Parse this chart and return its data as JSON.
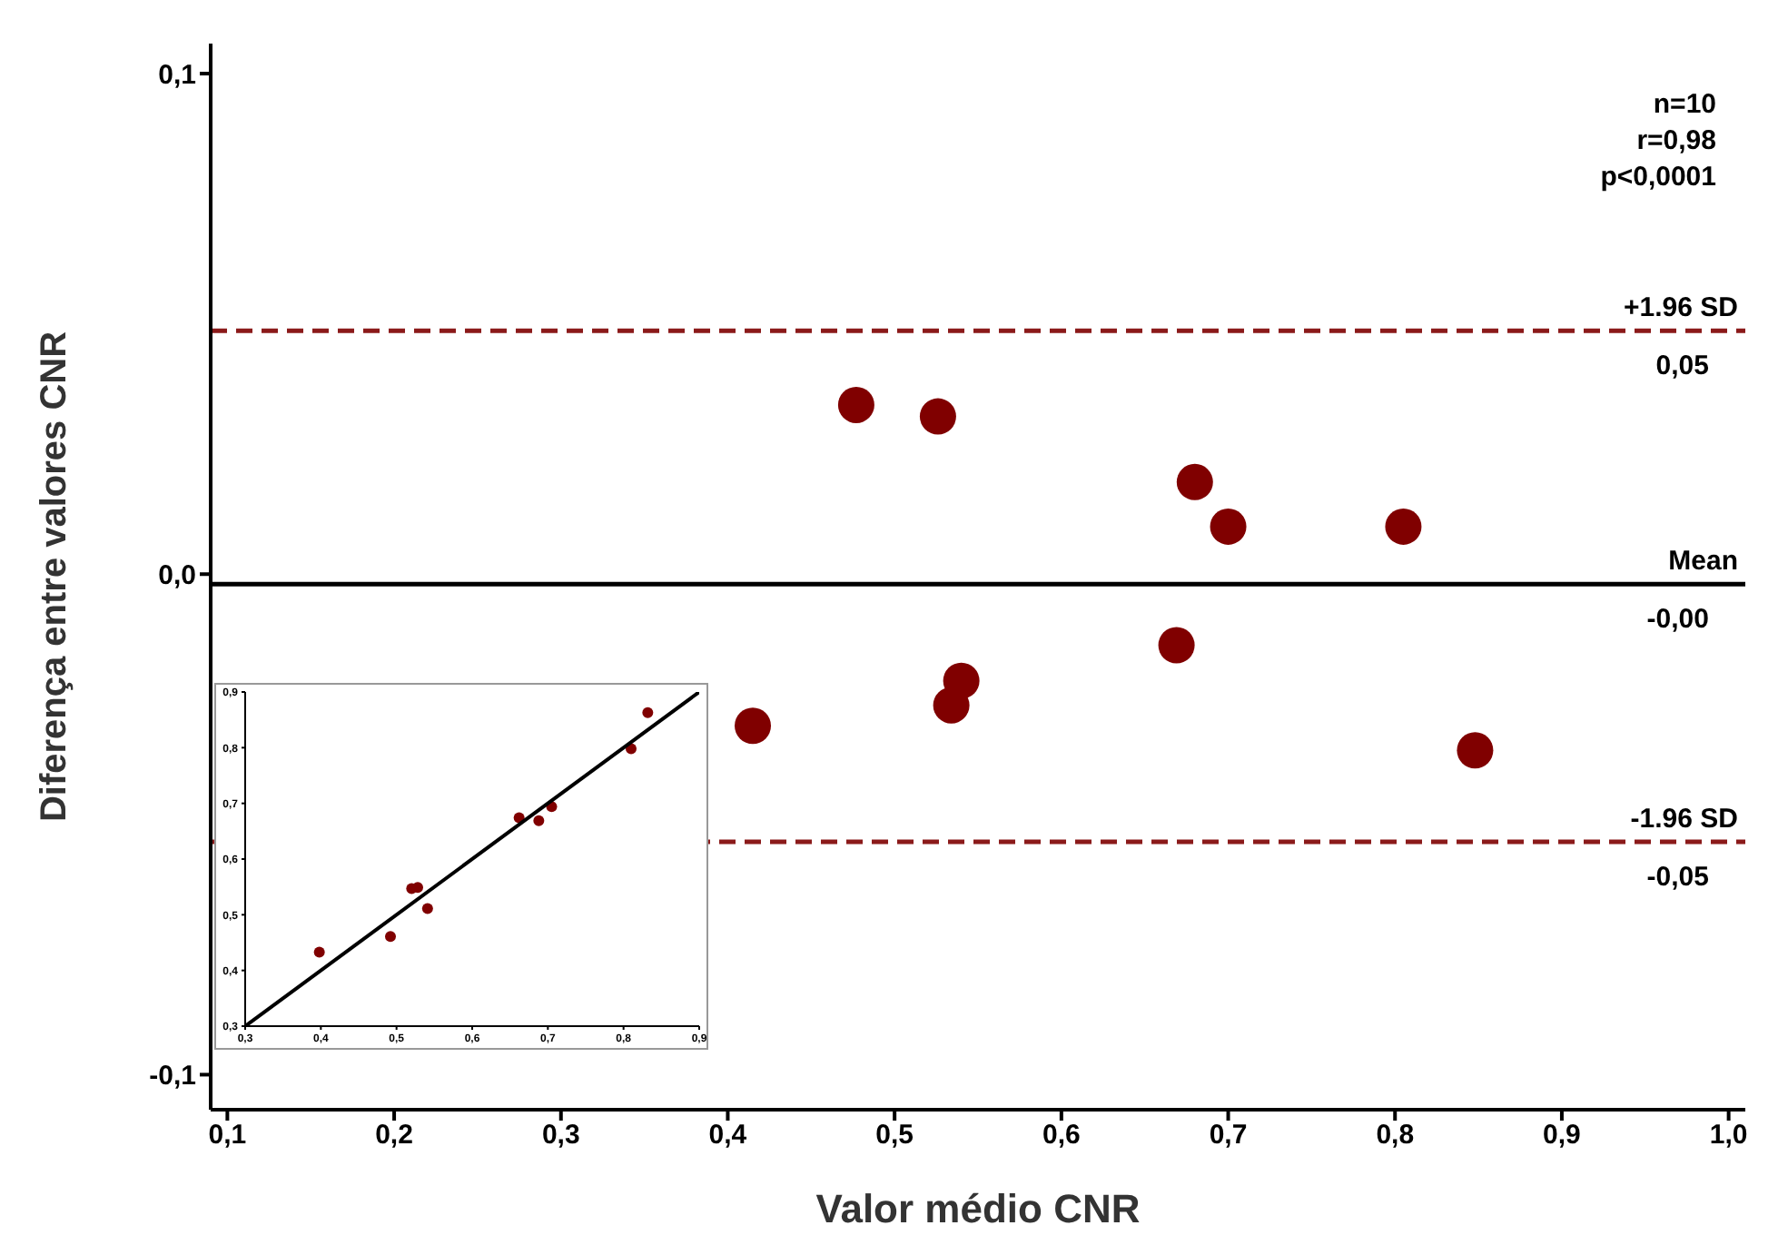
{
  "chart_data": [
    {
      "type": "scatter",
      "xlabel": "Valor médio CNR",
      "ylabel": "Diferença entre valores CNR",
      "series": [
        {
          "color": "#800000",
          "x": [
            0.477,
            0.526,
            0.68,
            0.7,
            0.805,
            0.669,
            0.54,
            0.534,
            0.415,
            0.848
          ],
          "values": [
            0.0338,
            0.0315,
            0.0184,
            0.0095,
            0.0095,
            -0.0142,
            -0.0213,
            -0.0262,
            -0.0303,
            -0.0352
          ]
        }
      ],
      "xlim": [
        0.09,
        1.01
      ],
      "xticks": [
        {
          "value": 0.1,
          "label": "0,1"
        },
        {
          "value": 0.2,
          "label": "0,2"
        },
        {
          "value": 0.3,
          "label": "0,3"
        },
        {
          "value": 0.4,
          "label": "0,4"
        },
        {
          "value": 0.5,
          "label": "0,5"
        },
        {
          "value": 0.6,
          "label": "0,6"
        },
        {
          "value": 0.7,
          "label": "0,7"
        },
        {
          "value": 0.8,
          "label": "0,8"
        },
        {
          "value": 0.9,
          "label": "0,9"
        },
        {
          "value": 1.0,
          "label": "1,0"
        }
      ],
      "ylim": [
        -0.107,
        0.106
      ],
      "yticks": [
        {
          "value": -0.1,
          "label": "-0,1"
        },
        {
          "value": 0,
          "label": "0,0"
        },
        {
          "value": 0.1,
          "label": "0,1"
        }
      ],
      "ref_lines": [
        {
          "axis": "y",
          "value": 0.0486,
          "label": "+1.96 SD",
          "color": "#8b1a1a",
          "line_style": "dashed"
        },
        {
          "axis": "y",
          "value": -0.002,
          "label": "Mean",
          "color": "#000000",
          "line_style": "solid"
        },
        {
          "axis": "y",
          "value": -0.0535,
          "label": "-1.96 SD",
          "color": "#8b1a1a",
          "line_style": "dashed"
        }
      ],
      "annotations": [
        "n=10",
        "r=0,98",
        "p<0,0001",
        {
          "text": "0,05",
          "y": 0.0486
        },
        {
          "text": "-0,00",
          "y": -0.002
        },
        {
          "text": "-0,05",
          "y": -0.0535
        }
      ],
      "marker": "circle",
      "grid": false,
      "legend": false
    },
    {
      "type": "scatter",
      "series": [
        {
          "marker": "circle",
          "color": "#800000",
          "x": [
            0.398,
            0.492,
            0.52,
            0.528,
            0.541,
            0.662,
            0.688,
            0.705,
            0.81,
            0.832
          ],
          "values": [
            0.433,
            0.461,
            0.547,
            0.549,
            0.511,
            0.674,
            0.669,
            0.694,
            0.798,
            0.863
          ]
        },
        {
          "type": "line",
          "marker": "none",
          "color": "#000000",
          "x": [
            0.3,
            0.9
          ],
          "values": [
            0.3,
            0.9
          ]
        }
      ],
      "xlim": [
        0.3,
        0.9
      ],
      "xticks": [
        {
          "value": 0.3,
          "label": "0,3"
        },
        {
          "value": 0.4,
          "label": "0,4"
        },
        {
          "value": 0.5,
          "label": "0,5"
        },
        {
          "value": 0.6,
          "label": "0,6"
        },
        {
          "value": 0.7,
          "label": "0,7"
        },
        {
          "value": 0.8,
          "label": "0,8"
        },
        {
          "value": 0.9,
          "label": "0,9"
        }
      ],
      "ylim": [
        0.3,
        0.9
      ],
      "yticks": [
        {
          "value": 0.3,
          "label": "0,3"
        },
        {
          "value": 0.4,
          "label": "0,4"
        },
        {
          "value": 0.5,
          "label": "0,5"
        },
        {
          "value": 0.6,
          "label": "0,6"
        },
        {
          "value": 0.7,
          "label": "0,7"
        },
        {
          "value": 0.8,
          "label": "0,8"
        },
        {
          "value": 0.9,
          "label": "0,9"
        }
      ],
      "grid": false,
      "legend": false
    }
  ]
}
